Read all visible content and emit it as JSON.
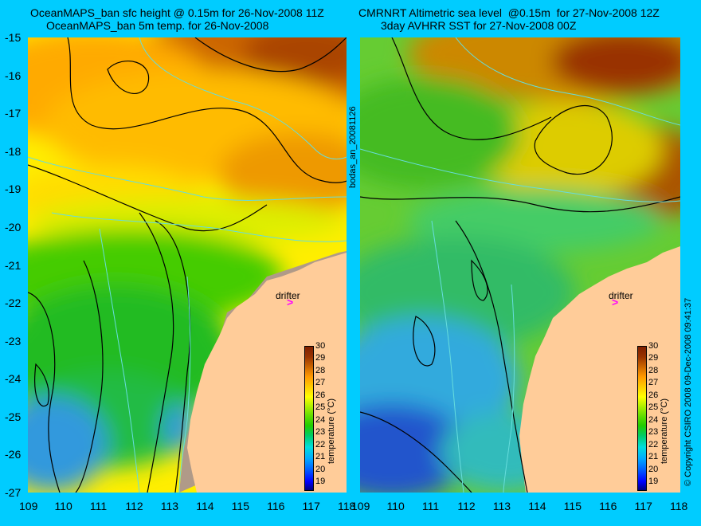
{
  "titles": {
    "left_line1": "OceanMAPS_ban sfc height @ 0.15m for 26-Nov-2008 11Z",
    "left_line2": "OceanMAPS_ban 5m temp. for 26-Nov-2008",
    "right_line1": "CMRNRT Altimetric sea level  @0.15m  for 27-Nov-2008 12Z",
    "right_line2": "3day AVHRR SST for 27-Nov-2008 00Z"
  },
  "axes": {
    "lat_ticks": [
      "-15",
      "-16",
      "-17",
      "-18",
      "-19",
      "-20",
      "-21",
      "-22",
      "-23",
      "-24",
      "-25",
      "-26",
      "-27"
    ],
    "lon_ticks_left": [
      "109",
      "110",
      "111",
      "112",
      "113",
      "114",
      "115",
      "116",
      "117",
      "118"
    ],
    "lon_ticks_right": [
      "109",
      "110",
      "111",
      "112",
      "113",
      "114",
      "115",
      "116",
      "117",
      "118"
    ],
    "lat_range": [
      -27,
      -15
    ],
    "lon_range": [
      109,
      118
    ]
  },
  "side_labels": {
    "middle": "bodas_an_20081126",
    "right": "© Copyright CSIRO 2008   09-Dec-2008 09:41:37"
  },
  "drifter": {
    "label": "drifter",
    "lon": 116.4,
    "lat": -21.9,
    "marker": ">",
    "color": "#ff00ff"
  },
  "colorbar": {
    "unit_label": "temperature (°C)",
    "ticks": [
      "30",
      "29",
      "28",
      "27",
      "26",
      "25",
      "24",
      "23",
      "22",
      "21",
      "20",
      "19"
    ]
  },
  "colors": {
    "background": "#00ccff",
    "land": "#ffcc99",
    "shelf_mask": "#b09a88",
    "contour": "#000000",
    "bathymetry": "#66dddd"
  }
}
